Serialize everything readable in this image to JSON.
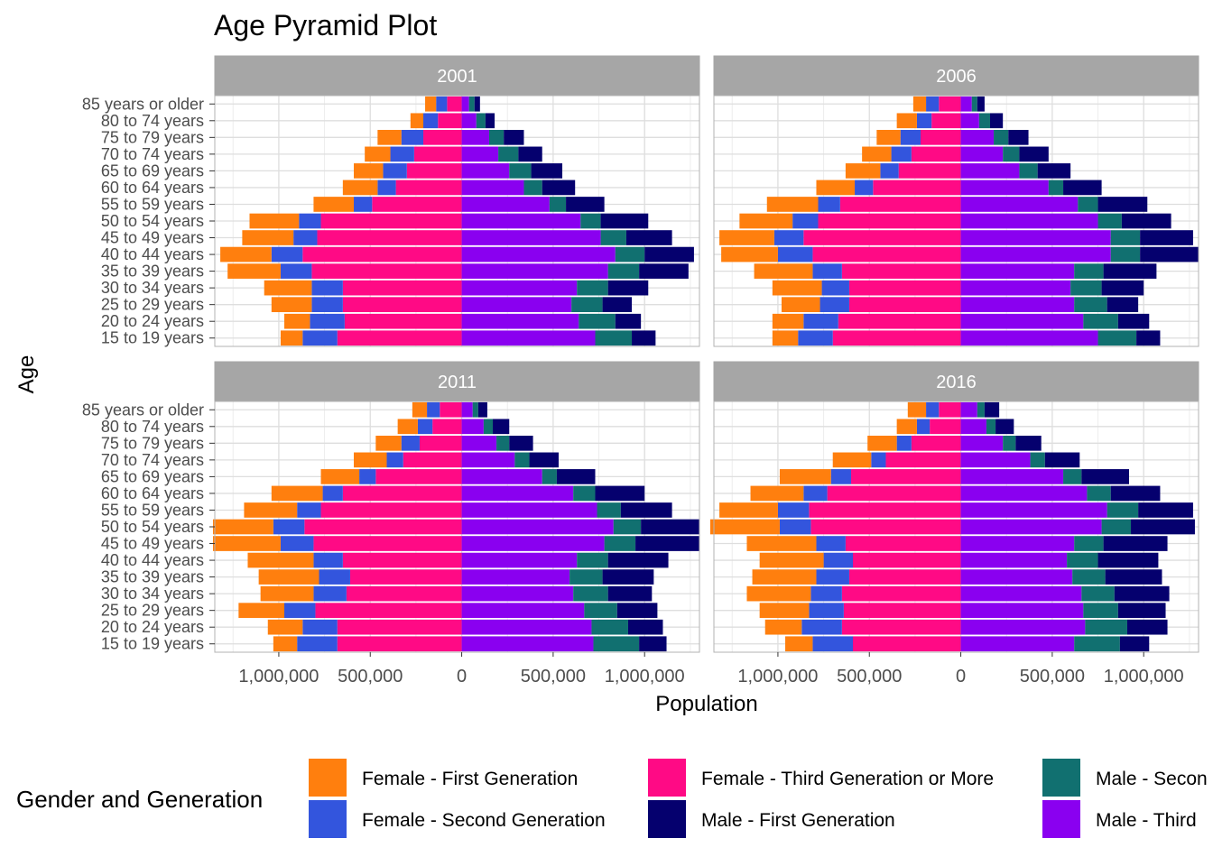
{
  "chart_data": {
    "type": "bar",
    "orientation": "horizontal",
    "title": "Age Pyramid Plot",
    "xlabel": "Population",
    "ylabel": "Age",
    "x_ticks": [
      "1,000,000",
      "500,000",
      "0",
      "500,000",
      "1,000,000"
    ],
    "x_tick_values": [
      -1000000,
      -500000,
      0,
      500000,
      1000000
    ],
    "xlim": [
      -1350000,
      1300000
    ],
    "grid": true,
    "legend_title": "Gender and Generation",
    "legend_position": "bottom",
    "categories": [
      "15 to 19 years",
      "20 to 24 years",
      "25 to 29 years",
      "30 to 34 years",
      "35 to 39 years",
      "40 to 44 years",
      "45 to 49 years",
      "50 to 54 years",
      "55 to 59 years",
      "60 to 64 years",
      "65 to 69 years",
      "70 to 74 years",
      "75 to 79 years",
      "80 to 74 years",
      "85 years or older"
    ],
    "series_names": [
      "Female - First Generation",
      "Female - Second Generation",
      "Female - Third Generation or More",
      "Male - Second Generation",
      "Male - First Generation",
      "Male - Third Generation or More"
    ],
    "colors": {
      "Female - First Generation": "#FF7F0E",
      "Female - Second Generation": "#3355DD",
      "Female - Third Generation or More": "#FF0A85",
      "Male - First Generation": "#05006E",
      "Male - Second Generation": "#117070",
      "Male - Third Generation or More": "#8A00F0"
    },
    "legend_visible_labels": [
      "Female - First Generation",
      "Female - Second Generation",
      "Female - Third Generation or More",
      "Male - First Generation",
      "Male - Secon",
      "Male - Third"
    ],
    "panels": [
      {
        "label": "2001",
        "female_third": [
          680000,
          640000,
          650000,
          650000,
          820000,
          870000,
          790000,
          770000,
          490000,
          360000,
          300000,
          260000,
          210000,
          130000,
          80000
        ],
        "female_second": [
          190000,
          190000,
          170000,
          170000,
          170000,
          170000,
          130000,
          120000,
          100000,
          100000,
          130000,
          130000,
          120000,
          80000,
          60000
        ],
        "female_first": [
          120000,
          140000,
          220000,
          260000,
          290000,
          280000,
          280000,
          270000,
          220000,
          190000,
          160000,
          140000,
          130000,
          70000,
          60000
        ],
        "male_third": [
          730000,
          640000,
          600000,
          630000,
          800000,
          840000,
          760000,
          650000,
          480000,
          340000,
          260000,
          200000,
          150000,
          80000,
          40000
        ],
        "male_second": [
          200000,
          200000,
          170000,
          170000,
          170000,
          160000,
          140000,
          110000,
          90000,
          100000,
          120000,
          110000,
          80000,
          50000,
          30000
        ],
        "male_first": [
          130000,
          140000,
          160000,
          220000,
          270000,
          270000,
          250000,
          260000,
          210000,
          180000,
          170000,
          130000,
          110000,
          50000,
          30000
        ]
      },
      {
        "label": "2006",
        "female_third": [
          700000,
          670000,
          610000,
          610000,
          650000,
          810000,
          860000,
          780000,
          660000,
          480000,
          340000,
          270000,
          220000,
          160000,
          120000
        ],
        "female_second": [
          190000,
          190000,
          160000,
          150000,
          160000,
          190000,
          160000,
          140000,
          120000,
          100000,
          100000,
          110000,
          110000,
          80000,
          70000
        ],
        "female_first": [
          140000,
          170000,
          210000,
          270000,
          320000,
          310000,
          300000,
          290000,
          280000,
          210000,
          190000,
          160000,
          130000,
          110000,
          70000
        ],
        "male_third": [
          750000,
          670000,
          620000,
          600000,
          620000,
          820000,
          820000,
          750000,
          640000,
          480000,
          320000,
          230000,
          180000,
          100000,
          60000
        ],
        "male_second": [
          210000,
          190000,
          180000,
          170000,
          160000,
          160000,
          160000,
          130000,
          110000,
          80000,
          100000,
          90000,
          80000,
          60000,
          30000
        ],
        "male_first": [
          130000,
          170000,
          170000,
          230000,
          290000,
          320000,
          290000,
          270000,
          270000,
          210000,
          180000,
          160000,
          110000,
          70000,
          40000
        ]
      },
      {
        "label": "2011",
        "female_third": [
          680000,
          680000,
          800000,
          630000,
          610000,
          650000,
          810000,
          860000,
          770000,
          650000,
          470000,
          320000,
          230000,
          160000,
          120000
        ],
        "female_second": [
          220000,
          190000,
          170000,
          180000,
          170000,
          160000,
          180000,
          170000,
          130000,
          110000,
          90000,
          90000,
          100000,
          80000,
          70000
        ],
        "female_first": [
          130000,
          190000,
          250000,
          290000,
          330000,
          360000,
          370000,
          330000,
          290000,
          280000,
          210000,
          180000,
          140000,
          110000,
          80000
        ],
        "male_third": [
          720000,
          710000,
          670000,
          610000,
          590000,
          630000,
          780000,
          830000,
          740000,
          610000,
          440000,
          290000,
          190000,
          120000,
          60000
        ],
        "male_second": [
          250000,
          200000,
          180000,
          190000,
          180000,
          170000,
          170000,
          150000,
          130000,
          120000,
          80000,
          80000,
          70000,
          50000,
          30000
        ],
        "male_first": [
          150000,
          190000,
          220000,
          240000,
          280000,
          330000,
          350000,
          320000,
          280000,
          270000,
          210000,
          160000,
          130000,
          90000,
          50000
        ]
      },
      {
        "label": "2016",
        "female_third": [
          590000,
          650000,
          640000,
          650000,
          610000,
          590000,
          630000,
          820000,
          830000,
          730000,
          600000,
          410000,
          270000,
          170000,
          120000
        ],
        "female_second": [
          220000,
          220000,
          190000,
          170000,
          180000,
          160000,
          160000,
          170000,
          170000,
          130000,
          110000,
          80000,
          80000,
          70000,
          70000
        ],
        "female_first": [
          150000,
          200000,
          270000,
          350000,
          350000,
          350000,
          380000,
          380000,
          320000,
          290000,
          280000,
          210000,
          160000,
          110000,
          100000
        ],
        "male_third": [
          620000,
          680000,
          670000,
          660000,
          610000,
          580000,
          620000,
          770000,
          800000,
          690000,
          560000,
          380000,
          230000,
          140000,
          90000
        ],
        "male_second": [
          250000,
          230000,
          190000,
          180000,
          180000,
          170000,
          160000,
          160000,
          170000,
          130000,
          100000,
          80000,
          70000,
          50000,
          40000
        ],
        "male_first": [
          160000,
          220000,
          260000,
          300000,
          310000,
          330000,
          350000,
          350000,
          300000,
          270000,
          260000,
          190000,
          140000,
          100000,
          80000
        ]
      }
    ]
  }
}
